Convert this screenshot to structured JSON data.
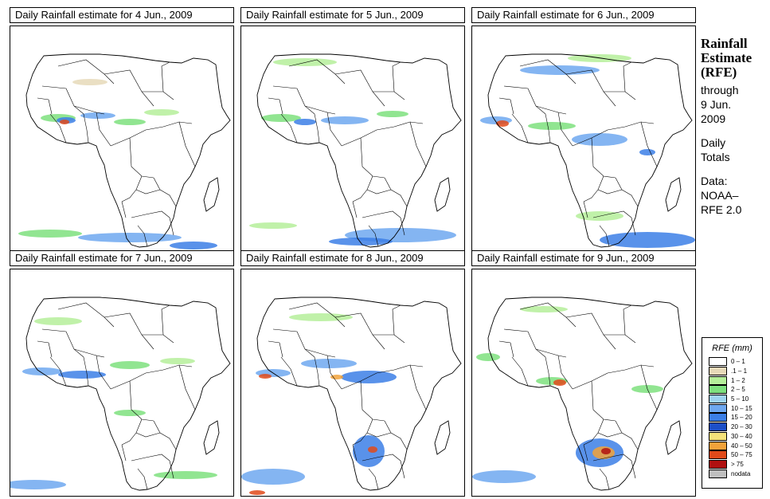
{
  "panels": [
    {
      "title": "Daily Rainfall estimate for  4 Jun., 2009"
    },
    {
      "title": "Daily Rainfall estimate for  5 Jun., 2009"
    },
    {
      "title": "Daily Rainfall estimate for  6 Jun., 2009"
    },
    {
      "title": "Daily Rainfall estimate for  7 Jun., 2009"
    },
    {
      "title": "Daily Rainfall estimate for  8 Jun., 2009"
    },
    {
      "title": "Daily Rainfall estimate for  9 Jun., 2009"
    }
  ],
  "sidebar": {
    "line1": "Rainfall",
    "line2": "Estimate",
    "line3": "(RFE)",
    "line4": "through",
    "line5": "9 Jun.",
    "line6": "2009",
    "line7": "Daily",
    "line8": "Totals",
    "line9": "Data:",
    "line10": "NOAA–",
    "line11": "RFE 2.0"
  },
  "legend": {
    "title": "RFE (mm)",
    "items": [
      {
        "label": "0 – 1",
        "color": "#ffffff"
      },
      {
        "label": ".1 – 1",
        "color": "#e6d9b8"
      },
      {
        "label": "1 – 2",
        "color": "#b5ef9a"
      },
      {
        "label": "2 – 5",
        "color": "#7ee07e"
      },
      {
        "label": "5 – 10",
        "color": "#9fd4f0"
      },
      {
        "label": "10 – 15",
        "color": "#6fa8f0"
      },
      {
        "label": "15 – 20",
        "color": "#3c7fe6"
      },
      {
        "label": "20 – 30",
        "color": "#1c4fc8"
      },
      {
        "label": "30 – 40",
        "color": "#f5e27a"
      },
      {
        "label": "40 – 50",
        "color": "#f2a23a"
      },
      {
        "label": "50 – 75",
        "color": "#e04a1a"
      },
      {
        "label": "> 75",
        "color": "#b01010"
      },
      {
        "label": "nodata",
        "color": "#bfbfbf"
      }
    ]
  }
}
